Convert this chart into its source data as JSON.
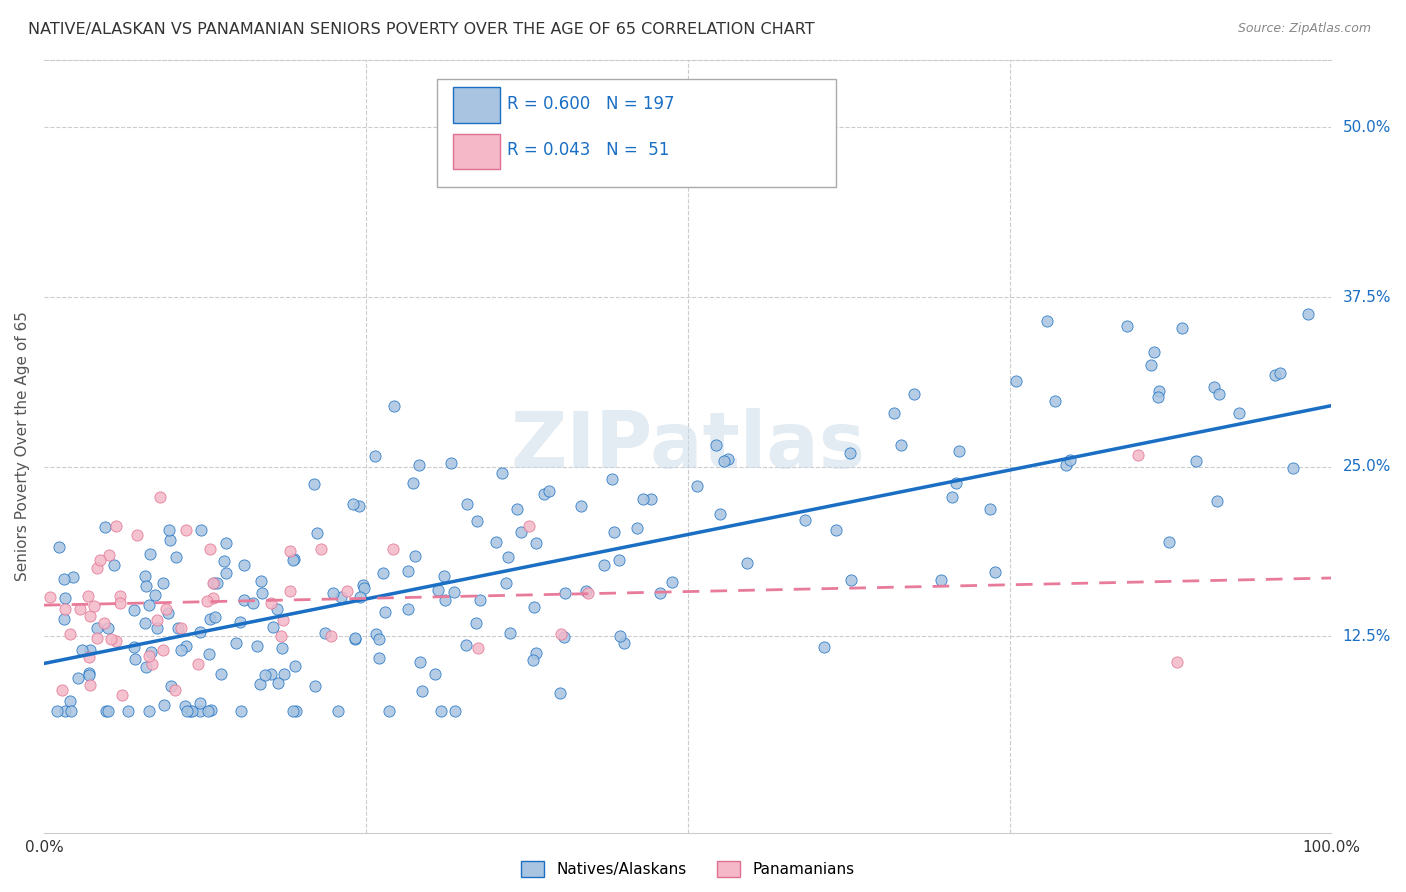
{
  "title": "NATIVE/ALASKAN VS PANAMANIAN SENIORS POVERTY OVER THE AGE OF 65 CORRELATION CHART",
  "source": "Source: ZipAtlas.com",
  "ylabel": "Seniors Poverty Over the Age of 65",
  "xlim": [
    0.0,
    1.0
  ],
  "ylim": [
    -0.02,
    0.55
  ],
  "ytick_positions": [
    0.125,
    0.25,
    0.375,
    0.5
  ],
  "yticklabels": [
    "12.5%",
    "25.0%",
    "37.5%",
    "50.0%"
  ],
  "legend_r_native": "0.600",
  "legend_n_native": "197",
  "legend_r_panamanian": "0.043",
  "legend_n_panamanian": " 51",
  "native_color": "#a8c4e0",
  "panamanian_color": "#f4b8c8",
  "native_line_color": "#1a6fc4",
  "panamanian_line_color": "#e87b9a",
  "panamanian_edge_color": "#e07090",
  "watermark": "ZIPatlas",
  "background_color": "#ffffff",
  "grid_color": "#cccccc",
  "native_trend_x": [
    0.0,
    1.0
  ],
  "native_trend_y": [
    0.105,
    0.295
  ],
  "panamanian_trend_x": [
    0.0,
    1.0
  ],
  "panamanian_trend_y": [
    0.148,
    0.168
  ],
  "n_native": 197,
  "n_panamanian": 51,
  "native_seed": 7,
  "panamanian_seed": 13
}
